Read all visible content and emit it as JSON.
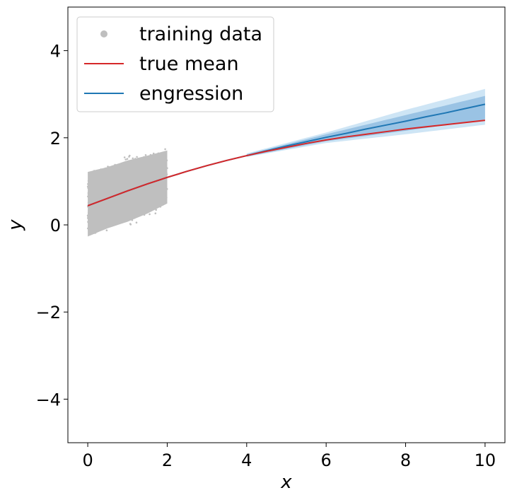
{
  "chart_data": {
    "type": "line",
    "xlabel": "x",
    "ylabel": "y",
    "xlim": [
      -0.5,
      10.5
    ],
    "ylim": [
      -5,
      5
    ],
    "xticks": [
      0,
      2,
      4,
      6,
      8,
      10
    ],
    "yticks": [
      -4,
      -2,
      0,
      2,
      4
    ],
    "xtick_labels": [
      "0",
      "2",
      "4",
      "6",
      "8",
      "10"
    ],
    "ytick_labels": [
      "−4",
      "−2",
      "0",
      "2",
      "4"
    ],
    "grid": false,
    "legend_position": "top-left",
    "legend": [
      {
        "name": "training data",
        "marker": "dot",
        "color": "#bfbfbf"
      },
      {
        "name": "true mean",
        "marker": "line",
        "color": "#d62728"
      },
      {
        "name": "engression",
        "marker": "line",
        "color": "#1f77b4"
      }
    ],
    "series": [
      {
        "name": "true mean",
        "color": "#d62728",
        "x": [
          0,
          0.5,
          1,
          1.5,
          2,
          2.5,
          3,
          3.5,
          4,
          4.5,
          5,
          5.5,
          6,
          6.5,
          7,
          7.5,
          8,
          8.5,
          9,
          9.5,
          10
        ],
        "y": [
          0.44,
          0.61,
          0.78,
          0.94,
          1.09,
          1.23,
          1.36,
          1.48,
          1.59,
          1.69,
          1.78,
          1.87,
          1.95,
          2.02,
          2.08,
          2.14,
          2.2,
          2.25,
          2.3,
          2.35,
          2.4
        ]
      },
      {
        "name": "engression",
        "color": "#1f77b4",
        "x": [
          0,
          0.5,
          1,
          1.5,
          2,
          2.5,
          3,
          3.5,
          4,
          4.5,
          5,
          5.5,
          6,
          6.5,
          7,
          7.5,
          8,
          8.5,
          9,
          9.5,
          10
        ],
        "y": [
          0.44,
          0.61,
          0.78,
          0.94,
          1.09,
          1.23,
          1.36,
          1.48,
          1.59,
          1.7,
          1.81,
          1.91,
          2.01,
          2.1,
          2.2,
          2.29,
          2.38,
          2.48,
          2.57,
          2.67,
          2.77
        ]
      }
    ],
    "engression_bands": [
      {
        "x": [
          4,
          6,
          8,
          10
        ],
        "lower": [
          1.56,
          1.88,
          2.08,
          2.3
        ],
        "upper": [
          1.64,
          2.12,
          2.64,
          3.12
        ],
        "color": "#aed4ee",
        "opacity": 0.6
      },
      {
        "x": [
          4,
          6,
          8,
          10
        ],
        "lower": [
          1.57,
          1.92,
          2.16,
          2.42
        ],
        "upper": [
          1.62,
          2.08,
          2.52,
          2.96
        ],
        "color": "#6fa8d6",
        "opacity": 0.55
      }
    ],
    "training_data": {
      "color": "#bfbfbf",
      "x_range": [
        0,
        2
      ],
      "y_lower": [
        -0.5,
        -0.3,
        -0.15,
        0.05,
        0.3
      ],
      "y_upper": [
        1.45,
        1.55,
        1.7,
        1.8,
        1.9
      ],
      "x_knots": [
        0,
        0.5,
        1,
        1.5,
        2
      ]
    }
  }
}
